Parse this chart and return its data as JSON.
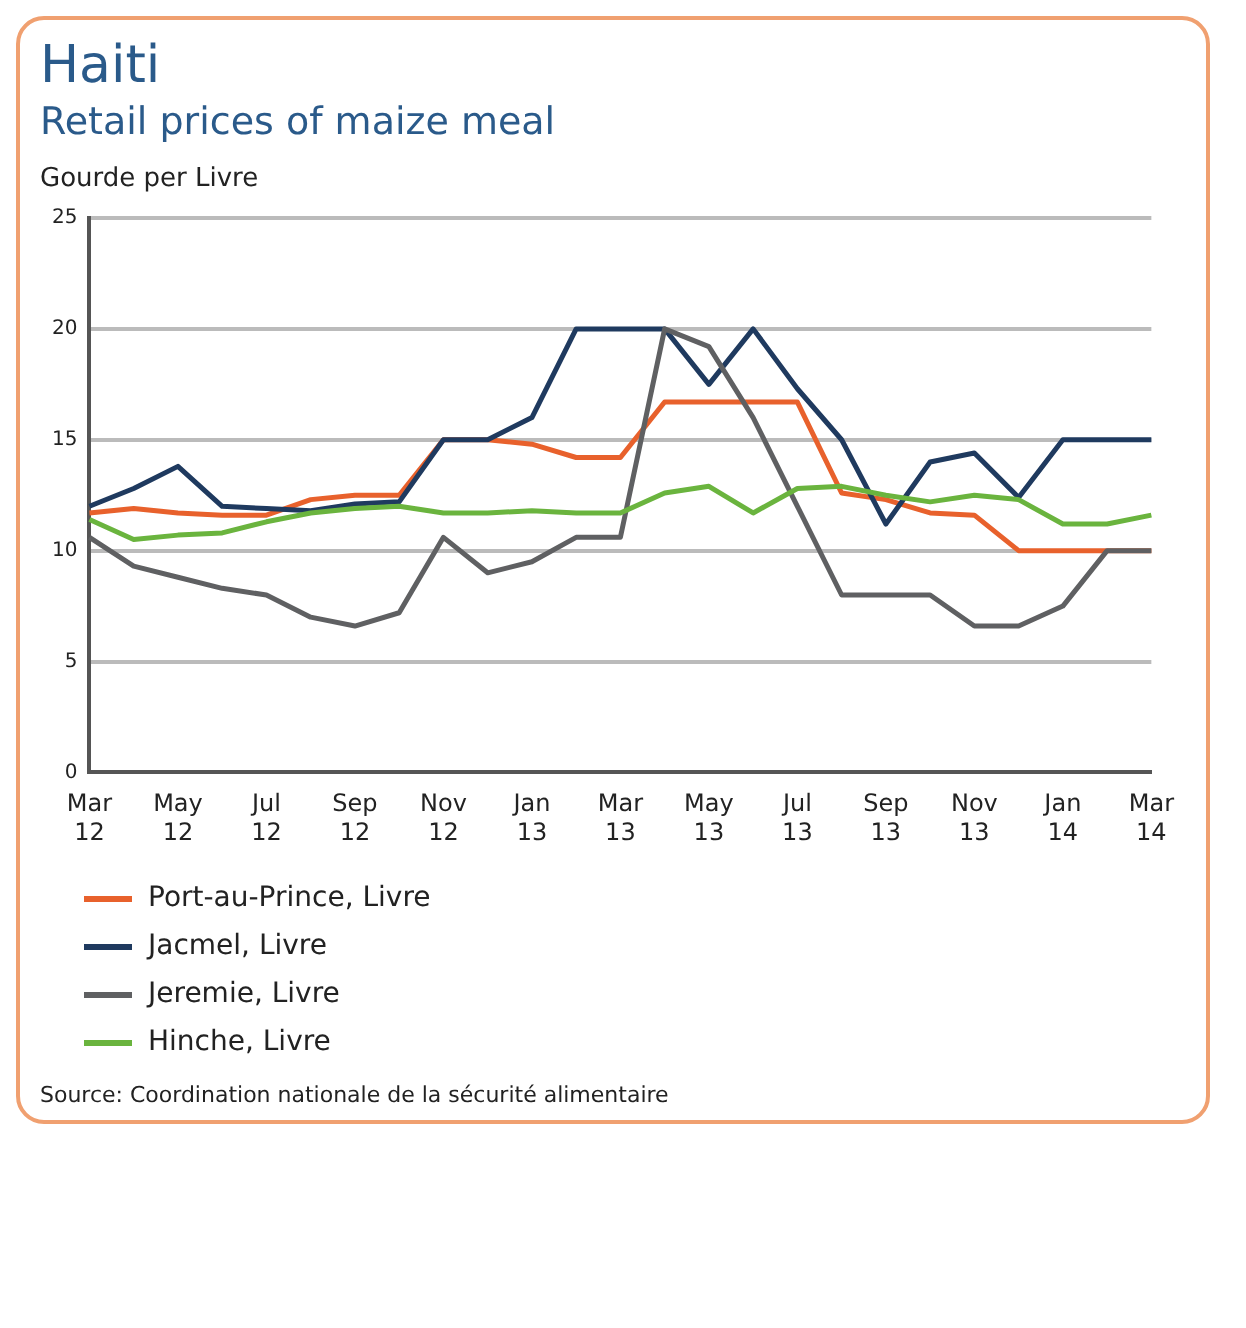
{
  "chart_data": {
    "type": "line",
    "title": "Haiti",
    "subtitle": "Retail prices of maize meal",
    "ylabel": "Gourde per Livre",
    "categories": [
      "Mar 12",
      null,
      "May 12",
      null,
      "Jul 12",
      null,
      "Sep 12",
      null,
      "Nov 12",
      null,
      "Jan 13",
      null,
      "Mar 13",
      null,
      "May 13",
      null,
      "Jul 13",
      null,
      "Sep 13",
      null,
      "Nov 13",
      null,
      "Jan 14",
      null,
      "Mar 14"
    ],
    "series": [
      {
        "name": "Port-au-Prince, Livre",
        "color": "#e8612c",
        "values": [
          11.7,
          11.9,
          11.7,
          11.6,
          11.6,
          12.3,
          12.5,
          12.5,
          15,
          15,
          14.8,
          14.2,
          14.2,
          16.7,
          16.7,
          16.7,
          16.7,
          12.6,
          12.3,
          11.7,
          11.6,
          10,
          10,
          10,
          10
        ]
      },
      {
        "name": "Jacmel, Livre",
        "color": "#1f3a5f",
        "values": [
          12,
          12.8,
          13.8,
          12,
          11.9,
          11.8,
          12.1,
          12.2,
          15,
          15,
          16,
          20,
          20,
          20,
          17.5,
          20,
          17.3,
          15,
          11.2,
          14,
          14.4,
          12.4,
          15,
          15,
          15
        ]
      },
      {
        "name": "Jeremie, Livre",
        "color": "#5f6062",
        "values": [
          10.6,
          9.3,
          8.8,
          8.3,
          8,
          7,
          6.6,
          7.2,
          10.6,
          9,
          9.5,
          10.6,
          10.6,
          20,
          19.2,
          16,
          12,
          8,
          8,
          8,
          6.6,
          6.6,
          7.5,
          10,
          10
        ]
      },
      {
        "name": "Hinche, Livre",
        "color": "#6ab43e",
        "values": [
          11.4,
          10.5,
          10.7,
          10.8,
          11.3,
          11.7,
          11.9,
          12,
          11.7,
          11.7,
          11.8,
          11.7,
          11.7,
          12.6,
          12.9,
          11.7,
          12.8,
          12.9,
          12.5,
          12.2,
          12.5,
          12.3,
          11.2,
          11.2,
          11.6
        ]
      }
    ],
    "ylim": [
      0,
      25
    ],
    "yticks": [
      0,
      5,
      10,
      15,
      20,
      25
    ],
    "grid": "y",
    "legend": "bottom",
    "marker": "none",
    "line_style": "solid",
    "annotations": [
      "Source: Coordination nationale de la sécurité alimentaire"
    ]
  }
}
